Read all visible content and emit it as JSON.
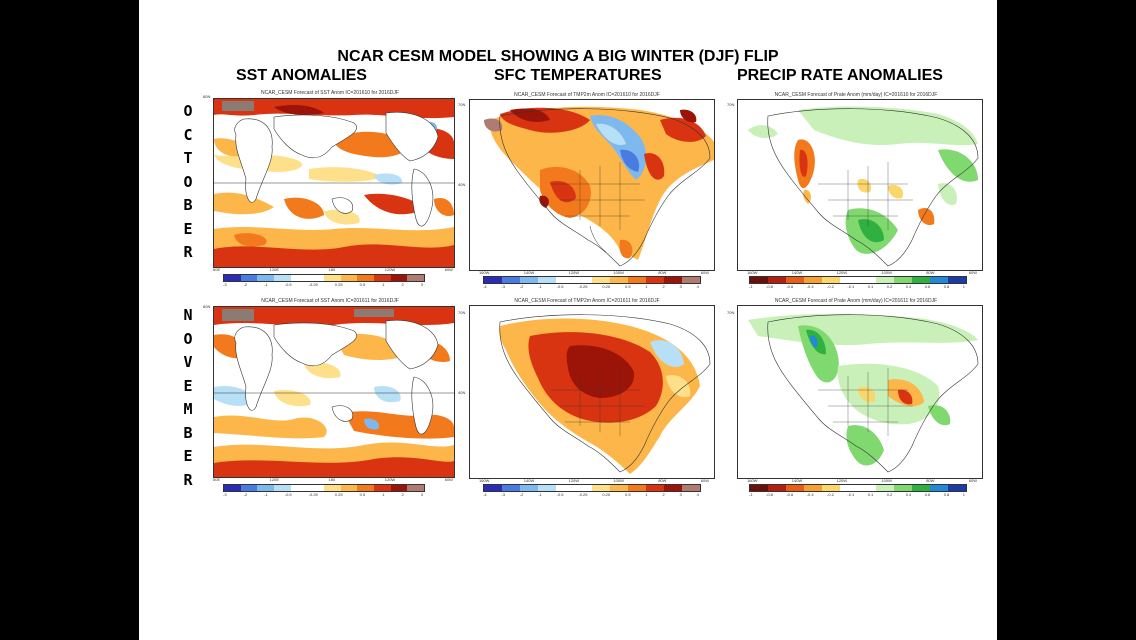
{
  "title": "NCAR CESM MODEL SHOWING A BIG WINTER (DJF) FLIP",
  "columns": {
    "sst": "SST ANOMALIES",
    "sfc": "SFC TEMPERATURES",
    "precip": "PRECIP RATE ANOMALIES"
  },
  "rows": {
    "october": [
      "O",
      "C",
      "T",
      "O",
      "B",
      "E",
      "R"
    ],
    "november": [
      "N",
      "O",
      "V",
      "E",
      "M",
      "B",
      "E",
      "R"
    ]
  },
  "panels": {
    "oct_sst": {
      "title": "NCAR_CESM Forecast of SST Anom  IC=201610 for 2016DJF",
      "xticks": [
        "60E",
        "120E",
        "180",
        "120W",
        "60W"
      ],
      "cbar": [
        "-3",
        "-2",
        "-1",
        "-0.5",
        "-0.25",
        "0.25",
        "0.5",
        "1",
        "2",
        "3"
      ]
    },
    "oct_sfc": {
      "title": "NCAR_CESM Forecast of TMP2m Anom  IC=201610 for 2016DJF",
      "xticks": [
        "160W",
        "140W",
        "120W",
        "100W",
        "80W",
        "60W"
      ],
      "cbar": [
        "-4",
        "-3",
        "-2",
        "-1",
        "-0.5",
        "-0.25",
        "0.25",
        "0.5",
        "1",
        "2",
        "3",
        "4"
      ]
    },
    "oct_precip": {
      "title": "NCAR_CESM Forecast of Prate Anom (mm/day)  IC=201610 for 2016DJF",
      "xticks": [
        "160W",
        "140W",
        "120W",
        "100W",
        "80W",
        "60W"
      ],
      "cbar": [
        "-1",
        "-0.8",
        "-0.6",
        "-0.4",
        "-0.2",
        "-0.1",
        "0.1",
        "0.2",
        "0.4",
        "0.6",
        "0.8",
        "1"
      ]
    },
    "nov_sst": {
      "title": "NCAR_CESM Forecast of SST Anom  IC=201611 for 2016DJF",
      "xticks": [
        "60E",
        "120E",
        "180",
        "120W",
        "60W"
      ],
      "cbar": [
        "-3",
        "-2",
        "-1",
        "-0.5",
        "-0.25",
        "0.25",
        "0.5",
        "1",
        "2",
        "3"
      ]
    },
    "nov_sfc": {
      "title": "NCAR_CESM Forecast of TMP2m Anom  IC=201611 for 2016DJF",
      "xticks": [
        "160W",
        "140W",
        "120W",
        "100W",
        "80W",
        "60W"
      ],
      "cbar": [
        "-4",
        "-3",
        "-2",
        "-1",
        "-0.5",
        "-0.25",
        "0.25",
        "0.5",
        "1",
        "2",
        "3",
        "4"
      ]
    },
    "nov_precip": {
      "title": "NCAR_CESM Forecast of Prate Anom (mm/day)  IC=201611 for 2016DJF",
      "xticks": [
        "160W",
        "140W",
        "120W",
        "100W",
        "80W",
        "60W"
      ],
      "cbar": [
        "-1",
        "-0.8",
        "-0.6",
        "-0.4",
        "-0.2",
        "-0.1",
        "0.1",
        "0.2",
        "0.4",
        "0.6",
        "0.8",
        "1"
      ]
    }
  },
  "colors": {
    "warm_scale": [
      "#2b2bb8",
      "#4a7be0",
      "#7db8ee",
      "#b7e0f6",
      "#ffffff",
      "#ffffff",
      "#ffe08a",
      "#fdb649",
      "#f37a1c",
      "#d93412",
      "#9c1408",
      "#b07b70"
    ],
    "precip_scale": [
      "#6b1008",
      "#b51f10",
      "#e85d18",
      "#f5a030",
      "#fbd66a",
      "#ffffff",
      "#ffffff",
      "#c9f0b8",
      "#7fd96e",
      "#30b040",
      "#1f8ad8",
      "#1c3aa8"
    ],
    "land_gray": "#8b7b72"
  }
}
